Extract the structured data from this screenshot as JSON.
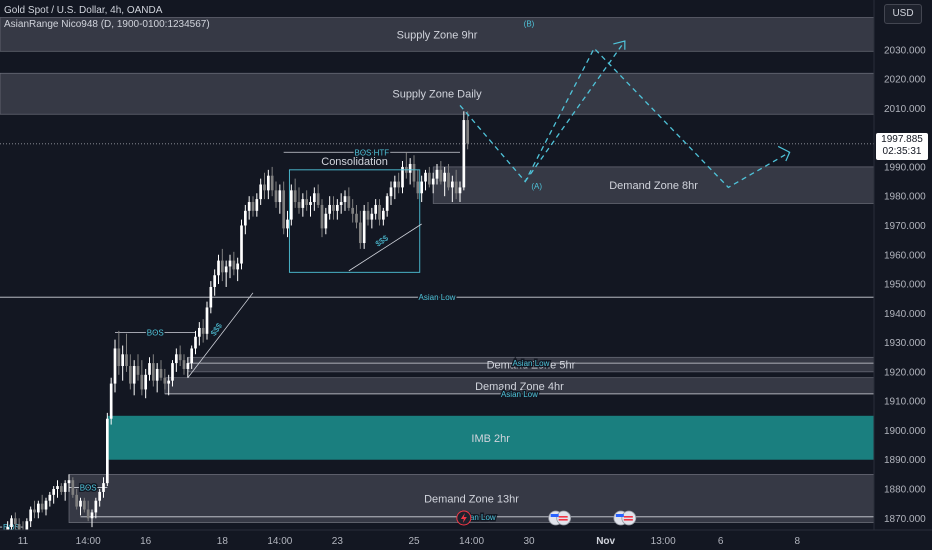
{
  "header": {
    "symbol_line": "Gold Spot / U.S. Dollar, 4h, OANDA",
    "indicator_line": "AsianRange Nico948 (D, 1900-0100:1234567)",
    "currency_button": "USD"
  },
  "price_tag": {
    "price": "1997.885",
    "countdown": "02:35:31"
  },
  "colors": {
    "background": "#131722",
    "zone_fill": "#434651",
    "imb_fill": "#1a7f7f",
    "annotation_cyan": "#4fc3d9",
    "candle_up": "#ffffff",
    "candle_down": "#808080",
    "line_white": "#d1d4dc"
  },
  "chart_data": {
    "type": "candlestick",
    "instrument": "Gold Spot / U.S. Dollar",
    "timeframe": "4h",
    "y_axis": {
      "ticks": [
        2030,
        2020,
        2010,
        1990,
        1980,
        1970,
        1960,
        1950,
        1940,
        1930,
        1920,
        1910,
        1900,
        1890,
        1880,
        1870
      ],
      "tick_labels": [
        "2030.000",
        "2020.000",
        "2010.000",
        "1990.000",
        "1980.000",
        "1970.000",
        "1960.000",
        "1950.000",
        "1940.000",
        "1930.000",
        "1920.000",
        "1910.000",
        "1900.000",
        "1890.000",
        "1880.000",
        "1870.000"
      ],
      "range": [
        1866,
        2047
      ]
    },
    "x_axis": {
      "labels": [
        "11",
        "14:00",
        "16",
        "18",
        "14:00",
        "23",
        "25",
        "14:00",
        "30",
        "Nov",
        "13:00",
        "6",
        "8"
      ],
      "bar_index": [
        4,
        21,
        36,
        56,
        71,
        86,
        106,
        121,
        136,
        156,
        171,
        186,
        206
      ],
      "range": [
        -2,
        226
      ]
    },
    "current_price": 1997.885,
    "candles": [
      {
        "i": 0,
        "o": 1865,
        "h": 1869,
        "l": 1862,
        "c": 1867
      },
      {
        "i": 1,
        "o": 1867,
        "h": 1871,
        "l": 1864,
        "c": 1870
      },
      {
        "i": 2,
        "o": 1870,
        "h": 1872,
        "l": 1866,
        "c": 1868
      },
      {
        "i": 3,
        "o": 1868,
        "h": 1870,
        "l": 1865,
        "c": 1866
      },
      {
        "i": 4,
        "o": 1866,
        "h": 1869,
        "l": 1863,
        "c": 1865
      },
      {
        "i": 5,
        "o": 1865,
        "h": 1870,
        "l": 1864,
        "c": 1869
      },
      {
        "i": 6,
        "o": 1869,
        "h": 1874,
        "l": 1867,
        "c": 1873
      },
      {
        "i": 7,
        "o": 1873,
        "h": 1876,
        "l": 1870,
        "c": 1872
      },
      {
        "i": 8,
        "o": 1872,
        "h": 1876,
        "l": 1870,
        "c": 1875
      },
      {
        "i": 9,
        "o": 1875,
        "h": 1878,
        "l": 1872,
        "c": 1873
      },
      {
        "i": 10,
        "o": 1873,
        "h": 1877,
        "l": 1871,
        "c": 1876
      },
      {
        "i": 11,
        "o": 1876,
        "h": 1879,
        "l": 1874,
        "c": 1878
      },
      {
        "i": 12,
        "o": 1878,
        "h": 1881,
        "l": 1875,
        "c": 1880
      },
      {
        "i": 13,
        "o": 1880,
        "h": 1883,
        "l": 1877,
        "c": 1881
      },
      {
        "i": 14,
        "o": 1881,
        "h": 1882,
        "l": 1878,
        "c": 1879
      },
      {
        "i": 15,
        "o": 1879,
        "h": 1883,
        "l": 1876,
        "c": 1882
      },
      {
        "i": 16,
        "o": 1882,
        "h": 1885,
        "l": 1879,
        "c": 1883
      },
      {
        "i": 17,
        "o": 1883,
        "h": 1884,
        "l": 1877,
        "c": 1878
      },
      {
        "i": 18,
        "o": 1878,
        "h": 1880,
        "l": 1873,
        "c": 1874
      },
      {
        "i": 19,
        "o": 1874,
        "h": 1877,
        "l": 1871,
        "c": 1876
      },
      {
        "i": 20,
        "o": 1876,
        "h": 1877,
        "l": 1872,
        "c": 1873
      },
      {
        "i": 21,
        "o": 1873,
        "h": 1876,
        "l": 1869,
        "c": 1870
      },
      {
        "i": 22,
        "o": 1870,
        "h": 1873,
        "l": 1867,
        "c": 1872
      },
      {
        "i": 23,
        "o": 1872,
        "h": 1877,
        "l": 1870,
        "c": 1876
      },
      {
        "i": 24,
        "o": 1876,
        "h": 1880,
        "l": 1874,
        "c": 1879
      },
      {
        "i": 25,
        "o": 1879,
        "h": 1884,
        "l": 1877,
        "c": 1882
      },
      {
        "i": 26,
        "o": 1882,
        "h": 1906,
        "l": 1881,
        "c": 1904
      },
      {
        "i": 27,
        "o": 1904,
        "h": 1918,
        "l": 1902,
        "c": 1916
      },
      {
        "i": 28,
        "o": 1916,
        "h": 1931,
        "l": 1913,
        "c": 1928
      },
      {
        "i": 29,
        "o": 1928,
        "h": 1934,
        "l": 1919,
        "c": 1922
      },
      {
        "i": 30,
        "o": 1922,
        "h": 1929,
        "l": 1917,
        "c": 1926
      },
      {
        "i": 31,
        "o": 1926,
        "h": 1933,
        "l": 1920,
        "c": 1922
      },
      {
        "i": 32,
        "o": 1922,
        "h": 1926,
        "l": 1914,
        "c": 1916
      },
      {
        "i": 33,
        "o": 1916,
        "h": 1924,
        "l": 1912,
        "c": 1922
      },
      {
        "i": 34,
        "o": 1922,
        "h": 1926,
        "l": 1917,
        "c": 1919
      },
      {
        "i": 35,
        "o": 1919,
        "h": 1924,
        "l": 1912,
        "c": 1914
      },
      {
        "i": 36,
        "o": 1914,
        "h": 1921,
        "l": 1911,
        "c": 1919
      },
      {
        "i": 37,
        "o": 1919,
        "h": 1925,
        "l": 1917,
        "c": 1923
      },
      {
        "i": 38,
        "o": 1923,
        "h": 1926,
        "l": 1915,
        "c": 1917
      },
      {
        "i": 39,
        "o": 1917,
        "h": 1923,
        "l": 1913,
        "c": 1921
      },
      {
        "i": 40,
        "o": 1921,
        "h": 1924,
        "l": 1917,
        "c": 1918
      },
      {
        "i": 41,
        "o": 1918,
        "h": 1921,
        "l": 1914,
        "c": 1916
      },
      {
        "i": 42,
        "o": 1916,
        "h": 1919,
        "l": 1912,
        "c": 1917
      },
      {
        "i": 43,
        "o": 1917,
        "h": 1924,
        "l": 1915,
        "c": 1923
      },
      {
        "i": 44,
        "o": 1923,
        "h": 1928,
        "l": 1920,
        "c": 1926
      },
      {
        "i": 45,
        "o": 1926,
        "h": 1929,
        "l": 1922,
        "c": 1924
      },
      {
        "i": 46,
        "o": 1924,
        "h": 1926,
        "l": 1919,
        "c": 1921
      },
      {
        "i": 47,
        "o": 1921,
        "h": 1925,
        "l": 1918,
        "c": 1923
      },
      {
        "i": 48,
        "o": 1923,
        "h": 1929,
        "l": 1921,
        "c": 1928
      },
      {
        "i": 49,
        "o": 1928,
        "h": 1934,
        "l": 1926,
        "c": 1932
      },
      {
        "i": 50,
        "o": 1932,
        "h": 1937,
        "l": 1929,
        "c": 1935
      },
      {
        "i": 51,
        "o": 1935,
        "h": 1938,
        "l": 1930,
        "c": 1933
      },
      {
        "i": 52,
        "o": 1933,
        "h": 1944,
        "l": 1931,
        "c": 1942
      },
      {
        "i": 53,
        "o": 1942,
        "h": 1951,
        "l": 1940,
        "c": 1949
      },
      {
        "i": 54,
        "o": 1949,
        "h": 1955,
        "l": 1946,
        "c": 1953
      },
      {
        "i": 55,
        "o": 1953,
        "h": 1960,
        "l": 1950,
        "c": 1958
      },
      {
        "i": 56,
        "o": 1958,
        "h": 1962,
        "l": 1951,
        "c": 1954
      },
      {
        "i": 57,
        "o": 1954,
        "h": 1958,
        "l": 1949,
        "c": 1956
      },
      {
        "i": 58,
        "o": 1956,
        "h": 1960,
        "l": 1952,
        "c": 1958
      },
      {
        "i": 59,
        "o": 1958,
        "h": 1961,
        "l": 1953,
        "c": 1955
      },
      {
        "i": 60,
        "o": 1955,
        "h": 1959,
        "l": 1951,
        "c": 1957
      },
      {
        "i": 61,
        "o": 1957,
        "h": 1972,
        "l": 1955,
        "c": 1970
      },
      {
        "i": 62,
        "o": 1970,
        "h": 1977,
        "l": 1967,
        "c": 1975
      },
      {
        "i": 63,
        "o": 1975,
        "h": 1980,
        "l": 1972,
        "c": 1978
      },
      {
        "i": 64,
        "o": 1978,
        "h": 1980,
        "l": 1973,
        "c": 1975
      },
      {
        "i": 65,
        "o": 1975,
        "h": 1981,
        "l": 1973,
        "c": 1979
      },
      {
        "i": 66,
        "o": 1979,
        "h": 1986,
        "l": 1977,
        "c": 1984
      },
      {
        "i": 67,
        "o": 1984,
        "h": 1988,
        "l": 1979,
        "c": 1982
      },
      {
        "i": 68,
        "o": 1982,
        "h": 1989,
        "l": 1979,
        "c": 1987
      },
      {
        "i": 69,
        "o": 1987,
        "h": 1990,
        "l": 1980,
        "c": 1982
      },
      {
        "i": 70,
        "o": 1982,
        "h": 1985,
        "l": 1976,
        "c": 1978
      },
      {
        "i": 71,
        "o": 1978,
        "h": 1984,
        "l": 1974,
        "c": 1982
      },
      {
        "i": 72,
        "o": 1982,
        "h": 1985,
        "l": 1967,
        "c": 1969
      },
      {
        "i": 73,
        "o": 1969,
        "h": 1975,
        "l": 1966,
        "c": 1972
      },
      {
        "i": 74,
        "o": 1972,
        "h": 1984,
        "l": 1970,
        "c": 1982
      },
      {
        "i": 75,
        "o": 1982,
        "h": 1986,
        "l": 1976,
        "c": 1978
      },
      {
        "i": 76,
        "o": 1978,
        "h": 1983,
        "l": 1974,
        "c": 1976
      },
      {
        "i": 77,
        "o": 1976,
        "h": 1981,
        "l": 1973,
        "c": 1979
      },
      {
        "i": 78,
        "o": 1979,
        "h": 1982,
        "l": 1975,
        "c": 1977
      },
      {
        "i": 79,
        "o": 1977,
        "h": 1980,
        "l": 1973,
        "c": 1978
      },
      {
        "i": 80,
        "o": 1978,
        "h": 1983,
        "l": 1975,
        "c": 1981
      },
      {
        "i": 81,
        "o": 1981,
        "h": 1984,
        "l": 1976,
        "c": 1977
      },
      {
        "i": 82,
        "o": 1977,
        "h": 1979,
        "l": 1966,
        "c": 1969
      },
      {
        "i": 83,
        "o": 1969,
        "h": 1976,
        "l": 1967,
        "c": 1974
      },
      {
        "i": 84,
        "o": 1974,
        "h": 1980,
        "l": 1972,
        "c": 1977
      },
      {
        "i": 85,
        "o": 1977,
        "h": 1980,
        "l": 1972,
        "c": 1975
      },
      {
        "i": 86,
        "o": 1975,
        "h": 1979,
        "l": 1972,
        "c": 1977
      },
      {
        "i": 87,
        "o": 1977,
        "h": 1981,
        "l": 1974,
        "c": 1978
      },
      {
        "i": 88,
        "o": 1978,
        "h": 1982,
        "l": 1975,
        "c": 1980
      },
      {
        "i": 89,
        "o": 1980,
        "h": 1983,
        "l": 1975,
        "c": 1976
      },
      {
        "i": 90,
        "o": 1976,
        "h": 1979,
        "l": 1971,
        "c": 1974
      },
      {
        "i": 91,
        "o": 1974,
        "h": 1977,
        "l": 1969,
        "c": 1971
      },
      {
        "i": 92,
        "o": 1971,
        "h": 1975,
        "l": 1962,
        "c": 1964
      },
      {
        "i": 93,
        "o": 1964,
        "h": 1977,
        "l": 1962,
        "c": 1975
      },
      {
        "i": 94,
        "o": 1975,
        "h": 1978,
        "l": 1970,
        "c": 1972
      },
      {
        "i": 95,
        "o": 1972,
        "h": 1976,
        "l": 1969,
        "c": 1974
      },
      {
        "i": 96,
        "o": 1974,
        "h": 1979,
        "l": 1972,
        "c": 1977
      },
      {
        "i": 97,
        "o": 1977,
        "h": 1979,
        "l": 1970,
        "c": 1972
      },
      {
        "i": 98,
        "o": 1972,
        "h": 1976,
        "l": 1970,
        "c": 1975
      },
      {
        "i": 99,
        "o": 1975,
        "h": 1981,
        "l": 1973,
        "c": 1980
      },
      {
        "i": 100,
        "o": 1980,
        "h": 1985,
        "l": 1977,
        "c": 1983
      },
      {
        "i": 101,
        "o": 1983,
        "h": 1987,
        "l": 1979,
        "c": 1985
      },
      {
        "i": 102,
        "o": 1985,
        "h": 1988,
        "l": 1981,
        "c": 1983
      },
      {
        "i": 103,
        "o": 1983,
        "h": 1992,
        "l": 1981,
        "c": 1990
      },
      {
        "i": 104,
        "o": 1990,
        "h": 1995,
        "l": 1986,
        "c": 1988
      },
      {
        "i": 105,
        "o": 1988,
        "h": 1993,
        "l": 1984,
        "c": 1991
      },
      {
        "i": 106,
        "o": 1991,
        "h": 1994,
        "l": 1983,
        "c": 1985
      },
      {
        "i": 107,
        "o": 1985,
        "h": 1989,
        "l": 1979,
        "c": 1981
      },
      {
        "i": 108,
        "o": 1981,
        "h": 1987,
        "l": 1978,
        "c": 1985
      },
      {
        "i": 109,
        "o": 1985,
        "h": 1989,
        "l": 1982,
        "c": 1988
      },
      {
        "i": 110,
        "o": 1988,
        "h": 1990,
        "l": 1983,
        "c": 1984
      },
      {
        "i": 111,
        "o": 1984,
        "h": 1988,
        "l": 1981,
        "c": 1986
      },
      {
        "i": 112,
        "o": 1986,
        "h": 1991,
        "l": 1984,
        "c": 1989
      },
      {
        "i": 113,
        "o": 1989,
        "h": 1992,
        "l": 1984,
        "c": 1985
      },
      {
        "i": 114,
        "o": 1985,
        "h": 1990,
        "l": 1980,
        "c": 1988
      },
      {
        "i": 115,
        "o": 1988,
        "h": 1991,
        "l": 1982,
        "c": 1983
      },
      {
        "i": 116,
        "o": 1983,
        "h": 1987,
        "l": 1978,
        "c": 1985
      },
      {
        "i": 117,
        "o": 1985,
        "h": 1989,
        "l": 1979,
        "c": 1981
      },
      {
        "i": 118,
        "o": 1981,
        "h": 1985,
        "l": 1978,
        "c": 1983
      },
      {
        "i": 119,
        "o": 1983,
        "h": 2009,
        "l": 1982,
        "c": 2006
      },
      {
        "i": 120,
        "o": 2006,
        "h": 2009,
        "l": 1996,
        "c": 1998
      }
    ],
    "zones": [
      {
        "label": "Supply Zone 9hr",
        "top": 2041,
        "bottom": 2029.5,
        "x_start": -2,
        "x_end": 226
      },
      {
        "label": "Supply Zone Daily",
        "top": 2022,
        "bottom": 2008,
        "x_start": -2,
        "x_end": 226
      },
      {
        "label": "Demand Zone 8hr",
        "top": 1990,
        "bottom": 1977.5,
        "x_start": 111,
        "x_end": 226
      },
      {
        "label": "Demand Zone 5hr",
        "top": 1925,
        "bottom": 1920,
        "x_start": 47,
        "x_end": 226
      },
      {
        "label": "Demand Zone 4hr",
        "top": 1918,
        "bottom": 1912.5,
        "x_start": 41,
        "x_end": 226
      },
      {
        "label": "IMB 2hr",
        "top": 1905,
        "bottom": 1890,
        "x_start": 26,
        "x_end": 226
      },
      {
        "label": "Demand Zone 13hr",
        "top": 1885,
        "bottom": 1868.5,
        "x_start": 16,
        "x_end": 226
      }
    ],
    "levels": [
      {
        "label": "Asian Low",
        "price": 1945.5,
        "x_start": -2,
        "x_end": 226
      },
      {
        "label": "Asian Low",
        "price": 1912.5,
        "x_start": 41,
        "x_end": 226
      },
      {
        "label": "Asian Low",
        "price": 1923,
        "x_start": 47,
        "x_end": 226
      },
      {
        "label": "Asian Low",
        "price": 1870.5,
        "x_start": 19,
        "x_end": 226
      },
      {
        "label": "BOS HTF",
        "price": 1995,
        "x_start": 72,
        "x_end": 118
      },
      {
        "label": "BOS",
        "price": 1933.5,
        "x_start": 28,
        "x_end": 49
      },
      {
        "label": "BOS",
        "price": 1880.5,
        "x_start": 16,
        "x_end": 26
      },
      {
        "label": "BOS",
        "price": 1867,
        "x_start": -2,
        "x_end": 4
      }
    ],
    "consolidation": {
      "label": "Consolidation",
      "x_start": 73.5,
      "x_end": 107.5,
      "top": 1989,
      "bottom": 1954
    },
    "liquidity_labels": [
      {
        "label": "$$$",
        "x": 55,
        "y": 1934
      },
      {
        "label": "$$$",
        "x": 98,
        "y": 1964
      }
    ],
    "projection": {
      "points": [
        [
          118,
          2011
        ],
        [
          135,
          1985
        ],
        [
          153,
          2030.5
        ],
        [
          188,
          1983
        ],
        [
          204,
          1995
        ]
      ],
      "extra_path": [
        [
          153,
          2030.5
        ],
        [
          135,
          1985
        ]
      ],
      "labels": [
        {
          "text": "(B)",
          "x": 136,
          "y": 2038
        },
        {
          "text": "(A)",
          "x": 138,
          "y": 1982.5
        }
      ]
    },
    "event_markers": [
      {
        "type": "lightning-icon",
        "x": 119
      },
      {
        "type": "flag-icon",
        "x": 144
      },
      {
        "type": "flag-icon",
        "x": 161
      }
    ]
  }
}
